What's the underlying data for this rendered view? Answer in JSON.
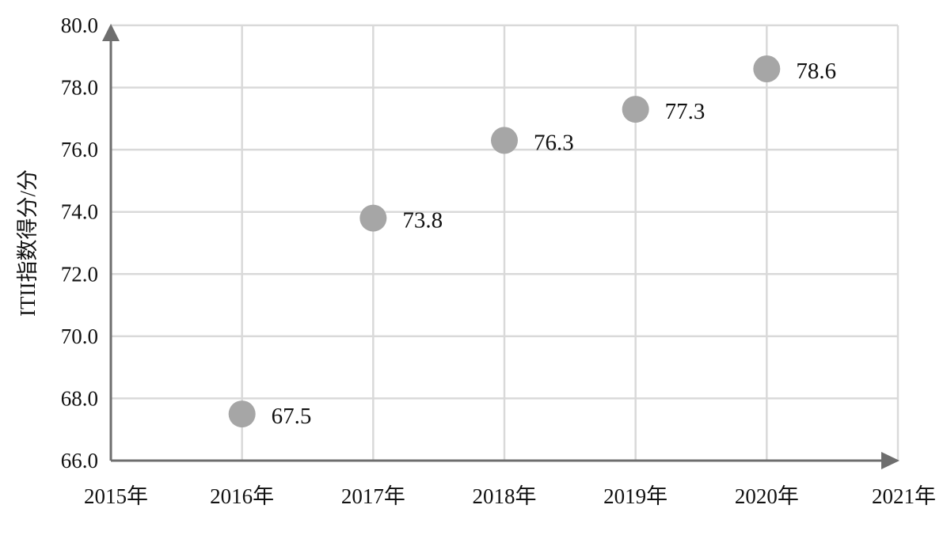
{
  "chart_data": {
    "type": "scatter",
    "title": "",
    "xlabel": "",
    "ylabel": "ITII指数得分/分",
    "x_ticks": [
      "2015年",
      "2016年",
      "2017年",
      "2018年",
      "2019年",
      "2020年",
      "2021年"
    ],
    "y_ticks": [
      "66.0",
      "68.0",
      "70.0",
      "72.0",
      "74.0",
      "76.0",
      "78.0",
      "80.0"
    ],
    "ylim": [
      66,
      80
    ],
    "grid": true,
    "legend": "none",
    "marker_color": "#a6a6a6",
    "series": [
      {
        "points": [
          {
            "x": "2016年",
            "y": 67.5,
            "label": "67.5"
          },
          {
            "x": "2017年",
            "y": 73.8,
            "label": "73.8"
          },
          {
            "x": "2018年",
            "y": 76.3,
            "label": "76.3"
          },
          {
            "x": "2019年",
            "y": 77.3,
            "label": "77.3"
          },
          {
            "x": "2020年",
            "y": 78.6,
            "label": "78.6"
          }
        ]
      }
    ]
  }
}
